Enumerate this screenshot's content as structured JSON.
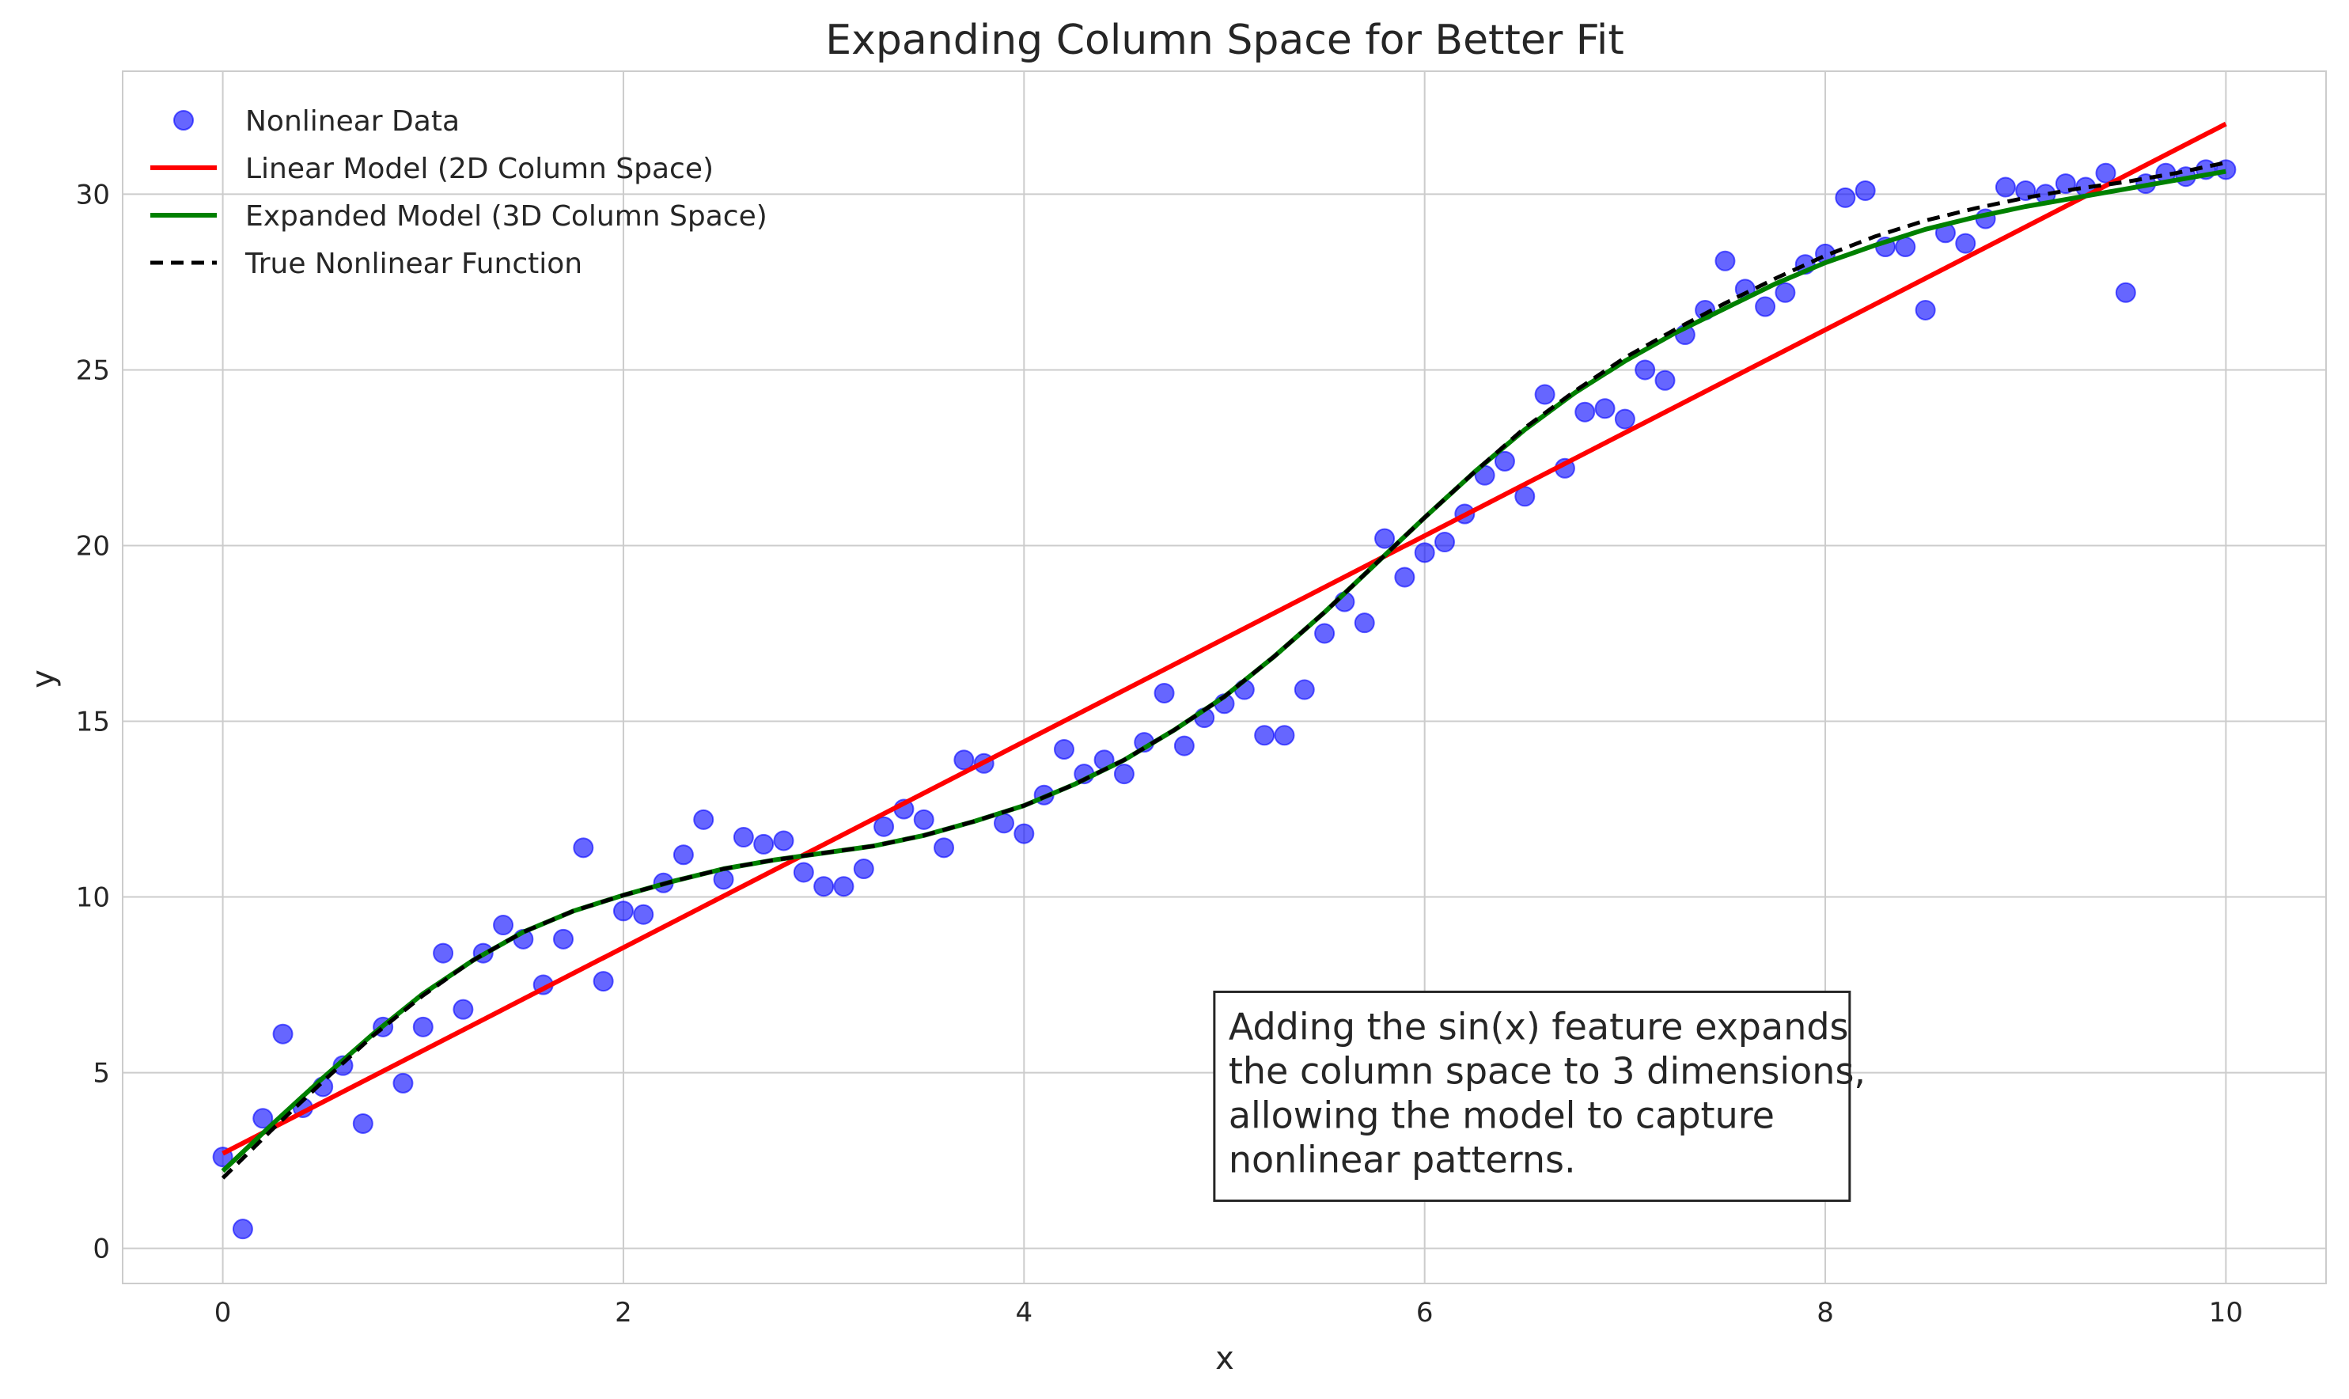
{
  "chart_data": {
    "type": "scatter",
    "title": "Expanding Column Space for Better Fit",
    "xlabel": "x",
    "ylabel": "y",
    "xlim": [
      -0.5,
      10.5
    ],
    "ylim": [
      -1,
      33.5
    ],
    "xticks": [
      0,
      2,
      4,
      6,
      8,
      10
    ],
    "yticks": [
      0,
      5,
      10,
      15,
      20,
      25,
      30
    ],
    "grid": true,
    "legend_position": "top-left",
    "series": [
      {
        "name": "Nonlinear Data",
        "kind": "scatter",
        "color": "#0000ff",
        "x": [
          0,
          0.1,
          0.2,
          0.3,
          0.4,
          0.5,
          0.6,
          0.7,
          0.8,
          0.9,
          1.0,
          1.1,
          1.2,
          1.3,
          1.4,
          1.5,
          1.6,
          1.7,
          1.8,
          1.9,
          2.0,
          2.1,
          2.2,
          2.3,
          2.4,
          2.5,
          2.6,
          2.7,
          2.8,
          2.9,
          3.0,
          3.1,
          3.2,
          3.3,
          3.4,
          3.5,
          3.6,
          3.7,
          3.8,
          3.9,
          4.0,
          4.1,
          4.2,
          4.3,
          4.4,
          4.5,
          4.6,
          4.7,
          4.8,
          4.9,
          5.0,
          5.1,
          5.2,
          5.3,
          5.4,
          5.5,
          5.6,
          5.7,
          5.8,
          5.9,
          6.0,
          6.1,
          6.2,
          6.3,
          6.4,
          6.5,
          6.6,
          6.7,
          6.8,
          6.9,
          7.0,
          7.1,
          7.2,
          7.3,
          7.4,
          7.5,
          7.6,
          7.7,
          7.8,
          7.9,
          8.0,
          8.1,
          8.2,
          8.3,
          8.4,
          8.5,
          8.6,
          8.7,
          8.8,
          8.9,
          9.0,
          9.1,
          9.2,
          9.3,
          9.4,
          9.5,
          9.6,
          9.7,
          9.8,
          9.9,
          10.0
        ],
        "y": [
          2.6,
          0.55,
          3.7,
          6.1,
          4.0,
          4.6,
          5.2,
          3.55,
          6.3,
          4.7,
          6.3,
          8.4,
          6.8,
          8.4,
          9.2,
          8.8,
          7.5,
          8.8,
          11.4,
          7.6,
          9.6,
          9.5,
          10.4,
          11.2,
          12.2,
          10.5,
          11.7,
          11.5,
          11.6,
          10.7,
          10.3,
          10.3,
          10.8,
          12.0,
          12.5,
          12.2,
          11.4,
          13.9,
          13.8,
          12.1,
          11.8,
          12.9,
          14.2,
          13.5,
          13.9,
          13.5,
          14.4,
          15.8,
          14.3,
          15.1,
          15.5,
          15.9,
          14.6,
          14.6,
          15.9,
          17.5,
          18.4,
          17.8,
          20.2,
          19.1,
          19.8,
          20.1,
          20.9,
          22.0,
          22.4,
          21.4,
          24.3,
          22.2,
          23.8,
          23.9,
          23.6,
          25.0,
          24.7,
          26.0,
          26.7,
          28.1,
          27.3,
          26.8,
          27.2,
          28.0,
          28.3,
          29.9,
          30.1,
          28.5,
          28.5,
          26.7,
          28.9,
          28.6,
          29.3,
          30.2,
          30.1,
          30.0,
          30.3,
          30.2,
          30.6,
          27.2,
          30.3,
          30.6,
          30.5,
          30.7,
          30.7
        ]
      },
      {
        "name": "Linear Model (2D Column Space)",
        "kind": "line",
        "color": "#ff0000",
        "x": [
          0,
          10
        ],
        "y": [
          2.7,
          32.0
        ]
      },
      {
        "name": "Expanded Model (3D Column Space)",
        "kind": "line",
        "color": "#008000",
        "x": [
          0,
          0.25,
          0.5,
          0.75,
          1.0,
          1.25,
          1.5,
          1.75,
          2.0,
          2.25,
          2.5,
          2.75,
          3.0,
          3.25,
          3.5,
          3.75,
          4.0,
          4.25,
          4.5,
          4.75,
          5.0,
          5.25,
          5.5,
          5.75,
          6.0,
          6.25,
          6.5,
          6.75,
          7.0,
          7.25,
          7.5,
          7.75,
          8.0,
          8.25,
          8.5,
          8.75,
          9.0,
          9.25,
          9.5,
          9.75,
          10.0
        ],
        "y": [
          2.2,
          3.55,
          4.85,
          6.1,
          7.25,
          8.2,
          9.0,
          9.6,
          10.05,
          10.45,
          10.8,
          11.05,
          11.25,
          11.45,
          11.75,
          12.15,
          12.6,
          13.2,
          13.9,
          14.75,
          15.7,
          16.85,
          18.1,
          19.45,
          20.8,
          22.1,
          23.3,
          24.35,
          25.25,
          26.05,
          26.75,
          27.45,
          28.05,
          28.55,
          29.0,
          29.35,
          29.65,
          29.9,
          30.15,
          30.4,
          30.65
        ]
      },
      {
        "name": "True Nonlinear Function",
        "kind": "line",
        "dashed": true,
        "color": "#000000",
        "x": [
          0,
          0.25,
          0.5,
          0.75,
          1.0,
          1.25,
          1.5,
          1.75,
          2.0,
          2.25,
          2.5,
          2.75,
          3.0,
          3.25,
          3.5,
          3.75,
          4.0,
          4.25,
          4.5,
          4.75,
          5.0,
          5.25,
          5.5,
          5.75,
          6.0,
          6.25,
          6.5,
          6.75,
          7.0,
          7.25,
          7.5,
          7.75,
          8.0,
          8.25,
          8.5,
          8.75,
          9.0,
          9.25,
          9.5,
          9.75,
          10.0
        ],
        "y": [
          2.0,
          3.4,
          4.75,
          6.05,
          7.2,
          8.2,
          9.0,
          9.6,
          10.05,
          10.45,
          10.8,
          11.05,
          11.25,
          11.45,
          11.75,
          12.15,
          12.6,
          13.2,
          13.9,
          14.75,
          15.7,
          16.85,
          18.1,
          19.45,
          20.8,
          22.1,
          23.35,
          24.4,
          25.35,
          26.15,
          26.9,
          27.6,
          28.25,
          28.8,
          29.25,
          29.6,
          29.9,
          30.15,
          30.35,
          30.6,
          30.9
        ]
      }
    ],
    "annotation": {
      "lines": [
        "Adding the sin(x) feature expands",
        "the column space to 3 dimensions,",
        "allowing the model to capture",
        "nonlinear patterns."
      ],
      "x": 4.95,
      "y_top": 7.3
    }
  }
}
